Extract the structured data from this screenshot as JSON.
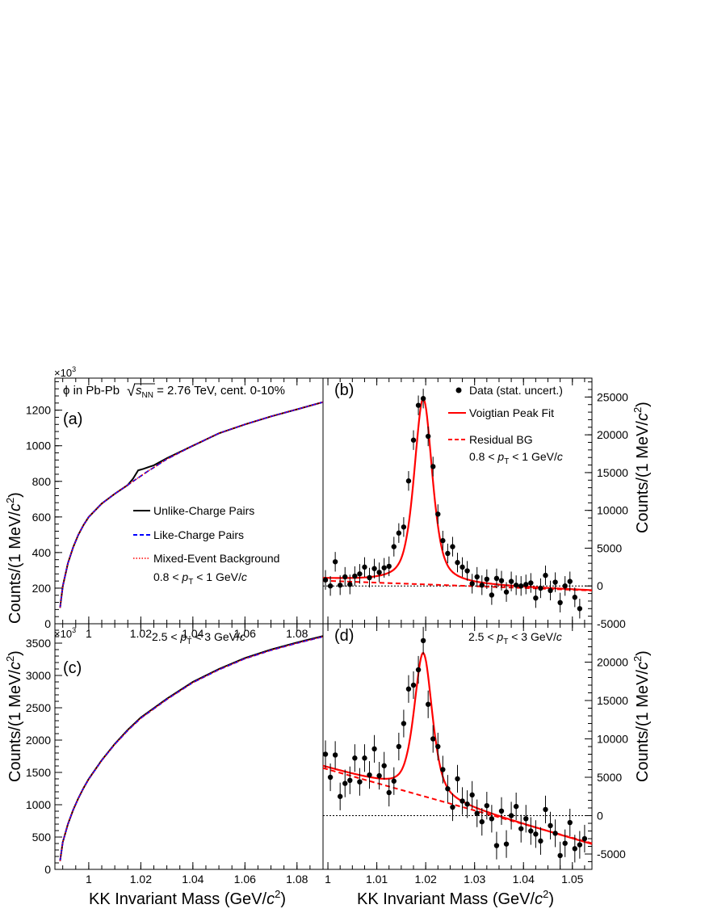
{
  "figure": {
    "exponent_label": "×10",
    "exponent_power": "3",
    "system_label": "ϕ in Pb-Pb",
    "sqrt_symbol": "√",
    "s_label": "s",
    "nn_sub": "NN",
    "energy_label": " = 2.76 TeV, cent. 0-10%",
    "ylabel_left": "Counts/(1 MeV/",
    "ylabel_right": "Counts/(1 MeV/",
    "ylabel_c": "c",
    "ylabel_sup": "2",
    "ylabel_close": ")",
    "xlabel": "KK Invariant Mass (GeV/",
    "xlabel_c": "c",
    "xlabel_sup": "2",
    "xlabel_close": ")",
    "pt_lo_label": "0.8 < ",
    "pt_lo_unit": " < 1 GeV/",
    "pt_hi_label": "2.5 < ",
    "pt_hi_unit": " < 3 GeV/",
    "p_sym": "p",
    "t_sub": "T",
    "c_sym": "c",
    "colors": {
      "unlike": "#000000",
      "like": "#0000ff",
      "mixed": "#ff0000",
      "fit": "#ff0000",
      "data": "#000000"
    }
  },
  "chart_data": [
    {
      "panel": "a",
      "panel_label": "(a)",
      "type": "line",
      "xlabel": "",
      "ylabel": "Counts/(1 MeV/c²)",
      "xlim": [
        0.987,
        1.09
      ],
      "ylim": [
        0,
        1380
      ],
      "xticks": [
        1,
        1.02,
        1.04,
        1.06,
        1.08
      ],
      "xticklabels": [
        "1",
        "1.02",
        "1.04",
        "1.06",
        "1.08"
      ],
      "yticks": [
        0,
        200,
        400,
        600,
        800,
        1000,
        1200
      ],
      "yticklabels": [
        "0",
        "200",
        "400",
        "600",
        "800",
        "1000",
        "1200"
      ],
      "x": [
        0.989,
        0.99,
        0.992,
        0.994,
        0.996,
        0.998,
        1.0,
        1.005,
        1.01,
        1.015,
        1.017,
        1.019,
        1.021,
        1.023,
        1.025,
        1.03,
        1.04,
        1.05,
        1.06,
        1.07,
        1.08,
        1.09
      ],
      "series": [
        {
          "name": "Unlike-Charge Pairs",
          "style": "solid",
          "values": [
            90,
            210,
            340,
            430,
            500,
            555,
            600,
            675,
            730,
            780,
            815,
            862,
            870,
            880,
            890,
            930,
            1000,
            1070,
            1120,
            1165,
            1205,
            1245
          ]
        },
        {
          "name": "Like-Charge Pairs",
          "style": "dashed",
          "values": [
            90,
            210,
            340,
            430,
            500,
            555,
            600,
            675,
            730,
            780,
            800,
            820,
            840,
            860,
            878,
            925,
            1000,
            1070,
            1120,
            1165,
            1205,
            1245
          ]
        },
        {
          "name": "Mixed-Event Background",
          "style": "dotted",
          "values": [
            90,
            210,
            340,
            430,
            500,
            555,
            600,
            675,
            730,
            780,
            800,
            820,
            840,
            860,
            878,
            925,
            1000,
            1070,
            1120,
            1165,
            1205,
            1245
          ]
        }
      ],
      "legend": [
        "Unlike-Charge Pairs",
        "Like-Charge Pairs",
        "Mixed-Event Background"
      ],
      "legend_position": "center-right",
      "grid": false
    },
    {
      "panel": "b",
      "panel_label": "(b)",
      "type": "scatter",
      "xlabel": "",
      "ylabel": "Counts/(1 MeV/c²)",
      "xlim": [
        0.999,
        1.054
      ],
      "ylim": [
        -5000,
        27500
      ],
      "yaxis_side": "right",
      "yticks": [
        -5000,
        0,
        5000,
        10000,
        15000,
        20000,
        25000
      ],
      "yticklabels": [
        "-5000",
        "0",
        "5000",
        "10000",
        "15000",
        "20000",
        "25000"
      ],
      "points": [
        [
          0.9995,
          800,
          1300
        ],
        [
          1.0005,
          0,
          1300
        ],
        [
          1.0015,
          3200,
          1300
        ],
        [
          1.0025,
          100,
          1300
        ],
        [
          1.0035,
          1200,
          1300
        ],
        [
          1.0045,
          200,
          1300
        ],
        [
          1.0055,
          1300,
          1300
        ],
        [
          1.0065,
          1600,
          1300
        ],
        [
          1.0075,
          2500,
          1300
        ],
        [
          1.0085,
          1100,
          1300
        ],
        [
          1.0095,
          2300,
          1300
        ],
        [
          1.0105,
          1800,
          1300
        ],
        [
          1.0115,
          2400,
          1300
        ],
        [
          1.0125,
          2600,
          1300
        ],
        [
          1.0135,
          5200,
          1300
        ],
        [
          1.0145,
          7000,
          1300
        ],
        [
          1.0155,
          7800,
          1300
        ],
        [
          1.0165,
          13900,
          1300
        ],
        [
          1.0175,
          19300,
          1300
        ],
        [
          1.0185,
          23900,
          1300
        ],
        [
          1.0195,
          24800,
          1300
        ],
        [
          1.0205,
          19800,
          1300
        ],
        [
          1.0215,
          15800,
          1300
        ],
        [
          1.0225,
          9500,
          1300
        ],
        [
          1.0235,
          6000,
          1300
        ],
        [
          1.0245,
          4300,
          1300
        ],
        [
          1.0255,
          5200,
          1300
        ],
        [
          1.0265,
          3100,
          1300
        ],
        [
          1.0275,
          2500,
          1300
        ],
        [
          1.0285,
          2000,
          1300
        ],
        [
          1.0295,
          300,
          1300
        ],
        [
          1.0305,
          1200,
          1300
        ],
        [
          1.0315,
          100,
          1300
        ],
        [
          1.0325,
          900,
          1300
        ],
        [
          1.0335,
          -1200,
          1300
        ],
        [
          1.0345,
          1000,
          1300
        ],
        [
          1.0355,
          700,
          1300
        ],
        [
          1.0365,
          -800,
          1300
        ],
        [
          1.0375,
          600,
          1300
        ],
        [
          1.0385,
          100,
          1300
        ],
        [
          1.0395,
          0,
          1300
        ],
        [
          1.0405,
          200,
          1300
        ],
        [
          1.0415,
          400,
          1300
        ],
        [
          1.0425,
          -1600,
          1300
        ],
        [
          1.0435,
          -300,
          1300
        ],
        [
          1.0445,
          1400,
          1300
        ],
        [
          1.0455,
          -600,
          1300
        ],
        [
          1.0465,
          500,
          1300
        ],
        [
          1.0475,
          -2200,
          1300
        ],
        [
          1.0485,
          0,
          1300
        ],
        [
          1.0495,
          600,
          1300
        ],
        [
          1.0505,
          -1500,
          1300
        ],
        [
          1.0515,
          -3000,
          1300
        ]
      ],
      "fit": {
        "name": "Voigtian Peak Fit",
        "peak_x": 1.0195,
        "peak_y": 24800,
        "bg_at_1": 900,
        "bg_at_105": -500
      },
      "residual_bg": {
        "name": "Residual BG",
        "x": [
          0.999,
          1.054
        ],
        "y": [
          700,
          -600
        ]
      },
      "legend": [
        "Data (stat. uncert.)",
        "Voigtian Peak Fit",
        "Residual BG"
      ],
      "legend_position": "top-right"
    },
    {
      "panel": "c",
      "panel_label": "(c)",
      "type": "line",
      "xlabel": "KK Invariant Mass (GeV/c²)",
      "ylabel": "Counts/(1 MeV/c²)",
      "xlim": [
        0.987,
        1.09
      ],
      "ylim": [
        0,
        3800
      ],
      "xticks": [
        1,
        1.02,
        1.04,
        1.06,
        1.08
      ],
      "xticklabels": [
        "1",
        "1.02",
        "1.04",
        "1.06",
        "1.08"
      ],
      "yticks": [
        0,
        500,
        1000,
        1500,
        2000,
        2500,
        3000,
        3500
      ],
      "yticklabels": [
        "0",
        "500",
        "1000",
        "1500",
        "2000",
        "2500",
        "3000",
        "3500"
      ],
      "x": [
        0.989,
        0.99,
        0.992,
        0.994,
        0.996,
        0.998,
        1.0,
        1.005,
        1.01,
        1.015,
        1.02,
        1.03,
        1.04,
        1.05,
        1.06,
        1.07,
        1.08,
        1.09
      ],
      "series": [
        {
          "name": "Unlike-Charge Pairs",
          "style": "solid",
          "values": [
            130,
            420,
            700,
            920,
            1100,
            1260,
            1400,
            1690,
            1940,
            2160,
            2350,
            2640,
            2900,
            3100,
            3270,
            3400,
            3510,
            3610
          ]
        },
        {
          "name": "Like-Charge Pairs",
          "style": "dashed",
          "values": [
            130,
            420,
            700,
            920,
            1100,
            1260,
            1395,
            1685,
            1935,
            2150,
            2340,
            2630,
            2890,
            3090,
            3260,
            3390,
            3500,
            3600
          ]
        },
        {
          "name": "Mixed-Event Background",
          "style": "dotted",
          "values": [
            130,
            420,
            700,
            920,
            1100,
            1260,
            1395,
            1685,
            1935,
            2150,
            2340,
            2630,
            2890,
            3090,
            3260,
            3390,
            3500,
            3600
          ]
        }
      ],
      "grid": false
    },
    {
      "panel": "d",
      "panel_label": "(d)",
      "type": "scatter",
      "xlabel": "KK Invariant Mass (GeV/c²)",
      "ylabel": "Counts/(1 MeV/c²)",
      "xlim": [
        0.999,
        1.054
      ],
      "ylim": [
        -7000,
        25000
      ],
      "yaxis_side": "right",
      "xticks": [
        1,
        1.01,
        1.02,
        1.03,
        1.04,
        1.05
      ],
      "xticklabels": [
        "1",
        "1.01",
        "1.02",
        "1.03",
        "1.04",
        "1.05"
      ],
      "yticks": [
        -5000,
        0,
        5000,
        10000,
        15000,
        20000
      ],
      "yticklabels": [
        "-5000",
        "0",
        "5000",
        "10000",
        "15000",
        "20000"
      ],
      "points": [
        [
          0.9995,
          8000,
          1800
        ],
        [
          1.0005,
          5000,
          1800
        ],
        [
          1.0015,
          7900,
          1800
        ],
        [
          1.0025,
          2500,
          1800
        ],
        [
          1.0035,
          4200,
          1800
        ],
        [
          1.0045,
          4600,
          1800
        ],
        [
          1.0055,
          7500,
          1800
        ],
        [
          1.0065,
          4400,
          1800
        ],
        [
          1.0075,
          7500,
          1800
        ],
        [
          1.0085,
          5300,
          1800
        ],
        [
          1.0095,
          8700,
          1800
        ],
        [
          1.0105,
          5200,
          1800
        ],
        [
          1.0115,
          6500,
          1800
        ],
        [
          1.0125,
          3000,
          1800
        ],
        [
          1.0135,
          4500,
          1800
        ],
        [
          1.0145,
          9000,
          1800
        ],
        [
          1.0155,
          12000,
          1800
        ],
        [
          1.0165,
          16500,
          1800
        ],
        [
          1.0175,
          17000,
          1800
        ],
        [
          1.0185,
          19000,
          1800
        ],
        [
          1.0195,
          22800,
          1800
        ],
        [
          1.0205,
          14500,
          1800
        ],
        [
          1.0215,
          10000,
          1800
        ],
        [
          1.0225,
          9000,
          1800
        ],
        [
          1.0235,
          6000,
          1800
        ],
        [
          1.0245,
          3500,
          1800
        ],
        [
          1.0255,
          1100,
          1800
        ],
        [
          1.0265,
          4800,
          1800
        ],
        [
          1.0275,
          1900,
          1800
        ],
        [
          1.0285,
          1500,
          1800
        ],
        [
          1.0295,
          2700,
          1800
        ],
        [
          1.0305,
          300,
          1800
        ],
        [
          1.0315,
          -800,
          1800
        ],
        [
          1.0325,
          1300,
          1800
        ],
        [
          1.0335,
          -400,
          1800
        ],
        [
          1.0345,
          -3900,
          1800
        ],
        [
          1.0355,
          600,
          1800
        ],
        [
          1.0365,
          -3700,
          1800
        ],
        [
          1.0375,
          0,
          1800
        ],
        [
          1.0385,
          1200,
          1800
        ],
        [
          1.0395,
          -1700,
          1800
        ],
        [
          1.0405,
          -400,
          1800
        ],
        [
          1.0415,
          -2000,
          1800
        ],
        [
          1.0425,
          -2400,
          1800
        ],
        [
          1.0435,
          -3300,
          1800
        ],
        [
          1.0445,
          800,
          1800
        ],
        [
          1.0455,
          -1300,
          1800
        ],
        [
          1.0465,
          -2300,
          1800
        ],
        [
          1.0475,
          -5200,
          1800
        ],
        [
          1.0485,
          -3600,
          1800
        ],
        [
          1.0495,
          -900,
          1800
        ],
        [
          1.0505,
          -4300,
          1800
        ],
        [
          1.0515,
          -3800,
          1800
        ],
        [
          1.0525,
          -3000,
          1800
        ]
      ],
      "fit": {
        "name": "Voigtian Peak Fit",
        "peak_x": 1.0195,
        "peak_y": 21200,
        "bg_at_1": 6200,
        "bg_at_105": -3000
      },
      "residual_bg": {
        "name": "Residual BG",
        "x": [
          0.999,
          1.054
        ],
        "y": [
          6200,
          -3600
        ]
      }
    }
  ]
}
